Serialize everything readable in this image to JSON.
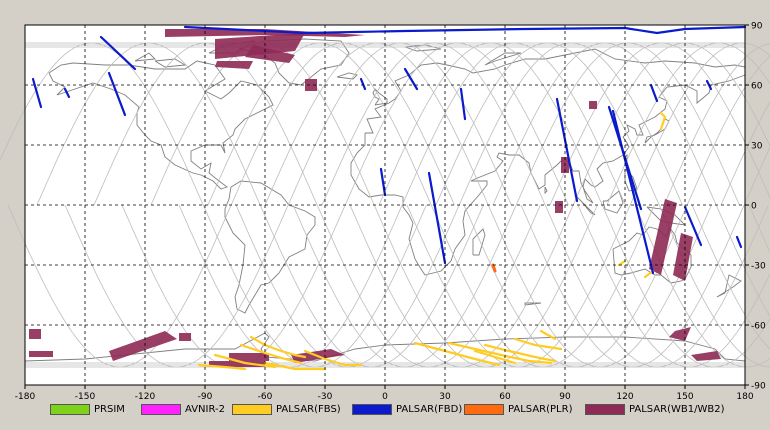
{
  "map": {
    "projection": "equirectangular",
    "background_color": "#ffffff",
    "frame_color": "#d4d0c8",
    "grid_color": "#000000",
    "coastline_color": "#808080",
    "orbit_track_color": "#bdbdbd",
    "x_ticks": [
      "-180",
      "-150",
      "-120",
      "-90",
      "-60",
      "-30",
      "0",
      "30",
      "60",
      "90",
      "120",
      "150",
      "180"
    ],
    "y_ticks_right": [
      "90",
      "60",
      "30",
      "0",
      "-30",
      "-60",
      "-90"
    ]
  },
  "legend": {
    "items": [
      {
        "label": "PRSIM",
        "color": "#7fd21a"
      },
      {
        "label": "AVNIR-2",
        "color": "#ff22ff"
      },
      {
        "label": "PALSAR(FBS)",
        "color": "#ffcc22"
      },
      {
        "label": "PALSAR(FBD)",
        "color": "#0a1acc"
      },
      {
        "label": "PALSAR(PLR)",
        "color": "#ff6a10"
      },
      {
        "label": "PALSAR(WB1/WB2)",
        "color": "#8e2a55"
      }
    ]
  },
  "observations": {
    "fbd_strips": [
      [
        [
          -100,
          89
        ],
        [
          -40,
          86
        ],
        [
          10,
          87
        ],
        [
          70,
          88
        ],
        [
          120,
          88.5
        ],
        [
          136,
          86
        ],
        [
          150,
          88
        ],
        [
          180,
          89
        ]
      ],
      [
        [
          -176,
          63
        ],
        [
          -172,
          49
        ]
      ],
      [
        [
          -160,
          58
        ],
        [
          -158,
          54
        ]
      ],
      [
        [
          -138,
          66
        ],
        [
          -130,
          45
        ]
      ],
      [
        [
          -142,
          84
        ],
        [
          -125,
          68
        ]
      ],
      [
        [
          -12,
          63
        ],
        [
          -10,
          58
        ]
      ],
      [
        [
          10,
          68
        ],
        [
          16,
          58
        ]
      ],
      [
        [
          -2,
          18
        ],
        [
          0,
          5
        ]
      ],
      [
        [
          22,
          16
        ],
        [
          30,
          -29
        ]
      ],
      [
        [
          38,
          58
        ],
        [
          40,
          43
        ]
      ],
      [
        [
          86,
          53
        ],
        [
          96,
          2
        ]
      ],
      [
        [
          112,
          49
        ],
        [
          128,
          -2
        ]
      ],
      [
        [
          114,
          47
        ],
        [
          134,
          -34
        ]
      ],
      [
        [
          133,
          60
        ],
        [
          136,
          52
        ]
      ],
      [
        [
          161,
          62
        ],
        [
          163,
          58
        ]
      ],
      [
        [
          150,
          -1
        ],
        [
          158,
          -20
        ]
      ],
      [
        [
          176,
          -16
        ],
        [
          178,
          -21
        ]
      ]
    ],
    "wb_polys": [
      [
        [
          -110,
          88
        ],
        [
          -60,
          88
        ],
        [
          -10,
          85
        ],
        [
          -20,
          84
        ],
        [
          -60,
          85
        ],
        [
          -110,
          84
        ]
      ],
      [
        [
          -85,
          83
        ],
        [
          -40,
          86
        ],
        [
          -45,
          77
        ],
        [
          -85,
          73
        ]
      ],
      [
        [
          -66,
          80
        ],
        [
          -45,
          75
        ],
        [
          -48,
          71
        ],
        [
          -70,
          74
        ]
      ],
      [
        [
          -84,
          72
        ],
        [
          -66,
          72
        ],
        [
          -68,
          68
        ],
        [
          -85,
          69
        ]
      ],
      [
        [
          -40,
          63
        ],
        [
          -34,
          63
        ],
        [
          -34,
          57
        ],
        [
          -40,
          57
        ]
      ],
      [
        [
          102,
          52
        ],
        [
          106,
          52
        ],
        [
          106,
          48
        ],
        [
          102,
          48
        ]
      ],
      [
        [
          88,
          24
        ],
        [
          92,
          24
        ],
        [
          92,
          16
        ],
        [
          88,
          16
        ]
      ],
      [
        [
          85,
          2
        ],
        [
          89,
          2
        ],
        [
          89,
          -4
        ],
        [
          85,
          -4
        ]
      ],
      [
        [
          -178,
          -62
        ],
        [
          -172,
          -62
        ],
        [
          -172,
          -67
        ],
        [
          -178,
          -67
        ]
      ],
      [
        [
          -178,
          -73
        ],
        [
          -166,
          -73
        ],
        [
          -166,
          -76
        ],
        [
          -178,
          -76
        ]
      ],
      [
        [
          -138,
          -73
        ],
        [
          -110,
          -63
        ],
        [
          -104,
          -67
        ],
        [
          -136,
          -78
        ]
      ],
      [
        [
          -103,
          -64
        ],
        [
          -97,
          -64
        ],
        [
          -97,
          -68
        ],
        [
          -103,
          -68
        ]
      ],
      [
        [
          -78,
          -78
        ],
        [
          -58,
          -78
        ],
        [
          -58,
          -74
        ],
        [
          -78,
          -74
        ]
      ],
      [
        [
          -47,
          -75
        ],
        [
          -27,
          -72
        ],
        [
          -20,
          -75
        ],
        [
          -45,
          -79
        ]
      ],
      [
        [
          -88,
          -78
        ],
        [
          -60,
          -78
        ],
        [
          -60,
          -81
        ],
        [
          -88,
          -81
        ]
      ],
      [
        [
          132,
          -32
        ],
        [
          140,
          3
        ],
        [
          146,
          1
        ],
        [
          138,
          -35
        ]
      ],
      [
        [
          144,
          -35
        ],
        [
          148,
          -14
        ],
        [
          154,
          -16
        ],
        [
          150,
          -38
        ]
      ],
      [
        [
          145,
          -63
        ],
        [
          153,
          -61
        ],
        [
          150,
          -68
        ],
        [
          142,
          -66
        ]
      ],
      [
        [
          153,
          -75
        ],
        [
          166,
          -73
        ],
        [
          168,
          -77
        ],
        [
          156,
          -78
        ]
      ]
    ],
    "fbs_strips": [
      [
        [
          -67,
          -66
        ],
        [
          -60,
          -70
        ],
        [
          -52,
          -73
        ],
        [
          -45,
          -75
        ],
        [
          -40,
          -76
        ]
      ],
      [
        [
          -72,
          -70
        ],
        [
          -60,
          -74
        ],
        [
          -50,
          -77
        ],
        [
          -42,
          -79
        ]
      ],
      [
        [
          -85,
          -75
        ],
        [
          -70,
          -79
        ],
        [
          -55,
          -81
        ]
      ],
      [
        [
          -93,
          -80
        ],
        [
          -80,
          -81
        ],
        [
          -70,
          -82
        ]
      ],
      [
        [
          -60,
          -79
        ],
        [
          -45,
          -82
        ],
        [
          -30,
          -82
        ]
      ],
      [
        [
          -40,
          -73
        ],
        [
          -30,
          -77
        ],
        [
          -20,
          -80
        ],
        [
          -12,
          -80
        ]
      ],
      [
        [
          15,
          -69
        ],
        [
          30,
          -73
        ],
        [
          45,
          -77
        ],
        [
          57,
          -80
        ]
      ],
      [
        [
          32,
          -69
        ],
        [
          45,
          -72
        ],
        [
          58,
          -75
        ],
        [
          72,
          -78
        ],
        [
          83,
          -79
        ]
      ],
      [
        [
          50,
          -70
        ],
        [
          62,
          -73
        ],
        [
          75,
          -76
        ],
        [
          85,
          -78
        ]
      ],
      [
        [
          65,
          -67
        ],
        [
          75,
          -70
        ],
        [
          88,
          -72
        ]
      ],
      [
        [
          78,
          -63
        ],
        [
          85,
          -67
        ]
      ],
      [
        [
          45,
          -73
        ],
        [
          55,
          -76
        ],
        [
          65,
          -79
        ]
      ],
      [
        [
          130,
          -36
        ],
        [
          134,
          -33
        ]
      ],
      [
        [
          117,
          -30
        ],
        [
          120,
          -28
        ]
      ],
      [
        [
          138,
          38
        ],
        [
          140,
          44
        ],
        [
          138,
          46
        ]
      ]
    ],
    "plr_strips": [
      [
        [
          54,
          -30
        ],
        [
          55,
          -33
        ]
      ]
    ]
  }
}
